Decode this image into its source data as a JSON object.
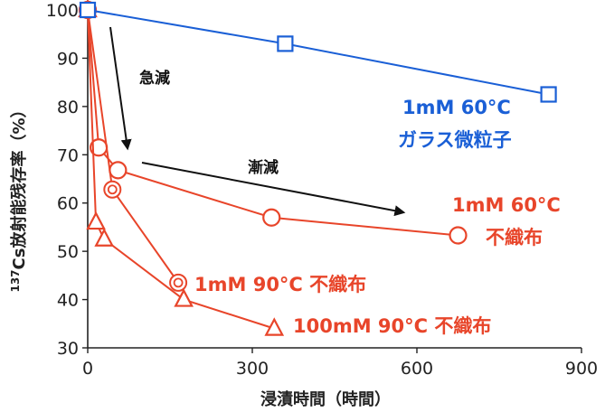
{
  "chart_data": {
    "type": "line",
    "xlabel": "浸漬時間（時間）",
    "ylabel": "137Cs放射能残存率（%）",
    "ylabel_parts": {
      "sup": "137",
      "main": "Cs放射能残存率（%）"
    },
    "xlim": [
      0,
      900
    ],
    "ylim": [
      30,
      100
    ],
    "xticks": [
      0,
      300,
      600,
      900
    ],
    "yticks": [
      30,
      40,
      50,
      60,
      70,
      80,
      90,
      100
    ],
    "grid": false,
    "series": [
      {
        "name": "1mM 60°C ガラス微粒子",
        "label_lines": [
          "1mM 60°C",
          "ガラス微粒子"
        ],
        "color": "#1a5fd6",
        "marker": "square",
        "x": [
          0,
          360,
          840
        ],
        "y": [
          100,
          93,
          82.5
        ]
      },
      {
        "name": "1mM 60°C 不織布",
        "label_lines": [
          "1mM 60°C",
          "不織布"
        ],
        "color": "#e8452a",
        "marker": "circle",
        "x": [
          0,
          20,
          55,
          335,
          675
        ],
        "y": [
          100,
          71.5,
          66.8,
          57,
          53.3
        ]
      },
      {
        "name": "1mM 90°C 不織布",
        "label_lines": [
          "1mM 90°C 不織布"
        ],
        "color": "#e8452a",
        "marker": "double-circle",
        "x": [
          0,
          45,
          165
        ],
        "y": [
          100,
          62.8,
          43.5
        ]
      },
      {
        "name": "100mM 90°C 不織布",
        "label_lines": [
          "100mM 90°C 不織布"
        ],
        "color": "#e8452a",
        "marker": "triangle",
        "x": [
          0,
          15,
          30,
          175,
          340
        ],
        "y": [
          100,
          56,
          52.5,
          40,
          34
        ]
      }
    ],
    "annotations": [
      {
        "text": "急減",
        "kind": "arrow"
      },
      {
        "text": "漸減",
        "kind": "arrow"
      }
    ]
  }
}
